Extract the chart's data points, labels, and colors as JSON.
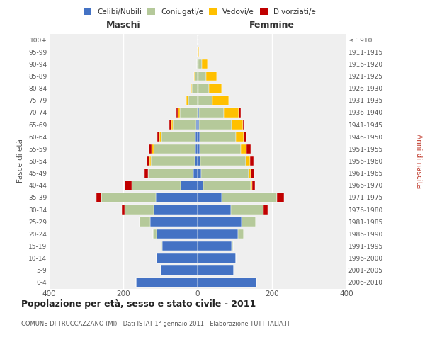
{
  "age_groups": [
    "0-4",
    "5-9",
    "10-14",
    "15-19",
    "20-24",
    "25-29",
    "30-34",
    "35-39",
    "40-44",
    "45-49",
    "50-54",
    "55-59",
    "60-64",
    "65-69",
    "70-74",
    "75-79",
    "80-84",
    "85-89",
    "90-94",
    "95-99",
    "100+"
  ],
  "birth_years": [
    "2006-2010",
    "2001-2005",
    "1996-2000",
    "1991-1995",
    "1986-1990",
    "1981-1985",
    "1976-1980",
    "1971-1975",
    "1966-1970",
    "1961-1965",
    "1956-1960",
    "1951-1955",
    "1946-1950",
    "1941-1945",
    "1936-1940",
    "1931-1935",
    "1926-1930",
    "1921-1925",
    "1916-1920",
    "1911-1915",
    "≤ 1910"
  ],
  "male_celibe": [
    165,
    100,
    110,
    95,
    110,
    128,
    118,
    112,
    45,
    12,
    8,
    6,
    5,
    4,
    0,
    0,
    0,
    0,
    0,
    0,
    0
  ],
  "male_coniugato": [
    0,
    0,
    0,
    3,
    10,
    28,
    78,
    148,
    132,
    122,
    118,
    112,
    92,
    62,
    48,
    25,
    15,
    8,
    2,
    0,
    0
  ],
  "male_vedovo": [
    0,
    0,
    0,
    0,
    0,
    0,
    0,
    0,
    0,
    0,
    3,
    5,
    5,
    5,
    5,
    5,
    3,
    2,
    0,
    0,
    0
  ],
  "male_divorziato": [
    0,
    0,
    0,
    0,
    0,
    0,
    8,
    12,
    20,
    8,
    8,
    8,
    6,
    5,
    5,
    0,
    0,
    0,
    0,
    0,
    0
  ],
  "female_nubile": [
    158,
    98,
    102,
    92,
    108,
    118,
    90,
    65,
    15,
    10,
    8,
    5,
    5,
    3,
    3,
    2,
    2,
    2,
    2,
    0,
    0
  ],
  "female_coniugata": [
    0,
    0,
    0,
    3,
    15,
    38,
    88,
    148,
    128,
    128,
    122,
    112,
    98,
    88,
    68,
    38,
    28,
    20,
    10,
    2,
    0
  ],
  "female_vedova": [
    0,
    0,
    0,
    0,
    0,
    0,
    0,
    0,
    3,
    5,
    10,
    15,
    20,
    30,
    40,
    44,
    35,
    30,
    15,
    2,
    0
  ],
  "female_divorziata": [
    0,
    0,
    0,
    0,
    0,
    0,
    10,
    20,
    8,
    10,
    10,
    10,
    8,
    5,
    5,
    0,
    0,
    0,
    0,
    0,
    0
  ],
  "colors_celibe": "#4472c4",
  "colors_coniugato": "#b5c99a",
  "colors_vedovo": "#ffc000",
  "colors_divorziato": "#c00000",
  "xlim": 400,
  "title": "Popolazione per età, sesso e stato civile - 2011",
  "subtitle": "COMUNE DI TRUCCAZZANO (MI) - Dati ISTAT 1° gennaio 2011 - Elaborazione TUTTITALIA.IT",
  "ylabel_left": "Fasce di età",
  "ylabel_right": "Anni di nascita",
  "label_maschi": "Maschi",
  "label_femmine": "Femmine",
  "legend_labels": [
    "Celibi/Nubili",
    "Coniugati/e",
    "Vedovi/e",
    "Divorziati/e"
  ],
  "bg_color": "#ffffff",
  "plot_bg": "#efefef"
}
